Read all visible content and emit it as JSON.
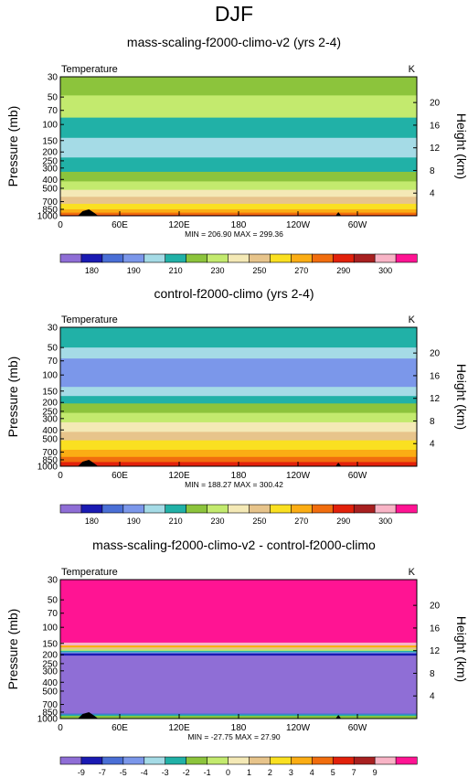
{
  "figure": {
    "title": "DJF"
  },
  "colors": {
    "abs": [
      "#8f6ed6",
      "#1a1ab3",
      "#4a6fd6",
      "#7b97ea",
      "#a5dbe6",
      "#21b1a7",
      "#8cc43c",
      "#c3ea6e",
      "#f4e9b6",
      "#e7c48b",
      "#fae021",
      "#fbad14",
      "#f16d0e",
      "#e2210b",
      "#a82020",
      "#f8b4c6",
      "#ff1493"
    ],
    "diff": [
      "#8f6ed6",
      "#1a1ab3",
      "#4a6fd6",
      "#7b97ea",
      "#a5dbe6",
      "#21b1a7",
      "#8cc43c",
      "#c3ea6e",
      "#f4e9b6",
      "#e7c48b",
      "#fae021",
      "#fbad14",
      "#f16d0e",
      "#e2210b",
      "#a82020",
      "#f8b4c6",
      "#ff1493"
    ]
  },
  "chart_data": [
    {
      "type": "heatmap",
      "title": "mass-scaling-f2000-climo-v2 (yrs 2-4)",
      "left_label": "Temperature",
      "right_label": "K",
      "ylabel": "Pressure (mb)",
      "ylabel_right": "Height (km)",
      "y_ticks": [
        "30",
        "50",
        "70",
        "100",
        "150",
        "200",
        "250",
        "300",
        "400",
        "500",
        "700",
        "850",
        "1000"
      ],
      "y_ticks_right": [
        "20",
        "16",
        "12",
        "8",
        "4"
      ],
      "x_ticks": [
        "0",
        "60E",
        "120E",
        "180",
        "120W",
        "60W"
      ],
      "stats": "MIN = 206.90  MAX = 299.36",
      "colorbar_labels": [
        "180",
        "190",
        "210",
        "230",
        "250",
        "270",
        "290",
        "300"
      ],
      "bands": [
        {
          "p_top": 30,
          "p_bot": 48,
          "color": "#8cc43c"
        },
        {
          "p_top": 48,
          "p_bot": 84,
          "color": "#c3ea6e"
        },
        {
          "p_top": 84,
          "p_bot": 140,
          "color": "#21b1a7"
        },
        {
          "p_top": 140,
          "p_bot": 230,
          "color": "#a5dbe6"
        },
        {
          "p_top": 230,
          "p_bot": 330,
          "color": "#21b1a7"
        },
        {
          "p_top": 330,
          "p_bot": 420,
          "color": "#8cc43c"
        },
        {
          "p_top": 420,
          "p_bot": 520,
          "color": "#c3ea6e"
        },
        {
          "p_top": 520,
          "p_bot": 620,
          "color": "#f4e9b6"
        },
        {
          "p_top": 620,
          "p_bot": 740,
          "color": "#e7c48b"
        },
        {
          "p_top": 740,
          "p_bot": 850,
          "color": "#fae021"
        },
        {
          "p_top": 850,
          "p_bot": 925,
          "color": "#fbad14"
        },
        {
          "p_top": 925,
          "p_bot": 980,
          "color": "#f16d0e"
        },
        {
          "p_top": 980,
          "p_bot": 1000,
          "color": "#e2210b"
        }
      ]
    },
    {
      "type": "heatmap",
      "title": "control-f2000-climo (yrs 2-4)",
      "left_label": "Temperature",
      "right_label": "K",
      "ylabel": "Pressure (mb)",
      "ylabel_right": "Height (km)",
      "y_ticks": [
        "30",
        "50",
        "70",
        "100",
        "150",
        "200",
        "250",
        "300",
        "400",
        "500",
        "700",
        "850",
        "1000"
      ],
      "y_ticks_right": [
        "20",
        "16",
        "12",
        "8",
        "4"
      ],
      "x_ticks": [
        "0",
        "60E",
        "120E",
        "180",
        "120W",
        "60W"
      ],
      "stats": "MIN = 188.27  MAX = 300.42",
      "colorbar_labels": [
        "180",
        "190",
        "210",
        "230",
        "250",
        "270",
        "290",
        "300"
      ],
      "bands": [
        {
          "p_top": 30,
          "p_bot": 50,
          "color": "#21b1a7"
        },
        {
          "p_top": 50,
          "p_bot": 66,
          "color": "#a5dbe6"
        },
        {
          "p_top": 66,
          "p_bot": 135,
          "color": "#7b97ea"
        },
        {
          "p_top": 135,
          "p_bot": 170,
          "color": "#a5dbe6"
        },
        {
          "p_top": 170,
          "p_bot": 205,
          "color": "#21b1a7"
        },
        {
          "p_top": 205,
          "p_bot": 260,
          "color": "#8cc43c"
        },
        {
          "p_top": 260,
          "p_bot": 330,
          "color": "#c3ea6e"
        },
        {
          "p_top": 330,
          "p_bot": 420,
          "color": "#f4e9b6"
        },
        {
          "p_top": 420,
          "p_bot": 520,
          "color": "#e7c48b"
        },
        {
          "p_top": 520,
          "p_bot": 660,
          "color": "#fae021"
        },
        {
          "p_top": 660,
          "p_bot": 790,
          "color": "#fbad14"
        },
        {
          "p_top": 790,
          "p_bot": 900,
          "color": "#f16d0e"
        },
        {
          "p_top": 900,
          "p_bot": 1000,
          "color": "#e2210b"
        }
      ]
    },
    {
      "type": "heatmap",
      "title": "mass-scaling-f2000-climo-v2 - control-f2000-climo",
      "left_label": "Temperature",
      "right_label": "K",
      "ylabel": "Pressure (mb)",
      "ylabel_right": "Height (km)",
      "y_ticks": [
        "30",
        "50",
        "70",
        "100",
        "150",
        "200",
        "250",
        "300",
        "400",
        "500",
        "700",
        "850",
        "1000"
      ],
      "y_ticks_right": [
        "20",
        "16",
        "12",
        "8",
        "4"
      ],
      "x_ticks": [
        "0",
        "60E",
        "120E",
        "180",
        "120W",
        "60W"
      ],
      "stats": "MIN = -27.75  MAX = 27.90",
      "colorbar_labels": [
        "-9",
        "-7",
        "-5",
        "-4",
        "-3",
        "-2",
        "-1",
        "0",
        "1",
        "2",
        "3",
        "4",
        "5",
        "7",
        "9"
      ],
      "bands": [
        {
          "p_top": 30,
          "p_bot": 147,
          "color": "#ff1493"
        },
        {
          "p_top": 147,
          "p_bot": 158,
          "color": "#f8b4c6"
        },
        {
          "p_top": 158,
          "p_bot": 166,
          "color": "#fbad14"
        },
        {
          "p_top": 166,
          "p_bot": 174,
          "color": "#e7c48b"
        },
        {
          "p_top": 174,
          "p_bot": 181,
          "color": "#c3ea6e"
        },
        {
          "p_top": 181,
          "p_bot": 187,
          "color": "#21b1a7"
        },
        {
          "p_top": 187,
          "p_bot": 193,
          "color": "#7b97ea"
        },
        {
          "p_top": 193,
          "p_bot": 204,
          "color": "#1a1ab3"
        },
        {
          "p_top": 204,
          "p_bot": 880,
          "color": "#8f6ed6"
        },
        {
          "p_top": 880,
          "p_bot": 905,
          "color": "#4a6fd6"
        },
        {
          "p_top": 905,
          "p_bot": 935,
          "color": "#21b1a7"
        },
        {
          "p_top": 935,
          "p_bot": 1000,
          "color": "#8cc43c"
        }
      ]
    }
  ]
}
